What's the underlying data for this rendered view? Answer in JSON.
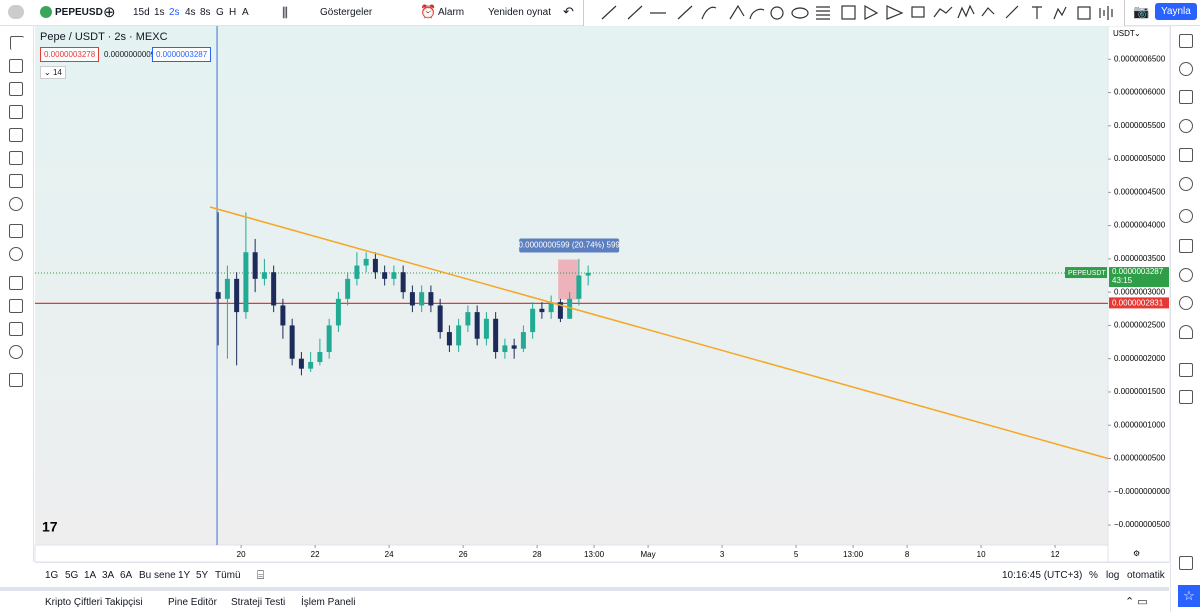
{
  "toolbar": {
    "symbol": "PEPEUSD",
    "intervals": [
      "15d",
      "1s",
      "2s",
      "4s",
      "8s",
      "G",
      "H",
      "A"
    ],
    "indicators": "Göstergeler",
    "alarm": "Alarm",
    "replay": "Yeniden oynat",
    "publish": "Yaynla"
  },
  "legend": {
    "title": "Pepe / USDT · 2s · MEXC",
    "bid": "0.0000003278",
    "spread": "0.0000000009",
    "ask": "0.0000003287",
    "indicator_count": "14"
  },
  "chart_data": {
    "type": "candlestick",
    "currency": "USDT",
    "up_color": "#22ab94",
    "down_color": "#1c2b5a",
    "xlim": [
      14.43,
      43.43
    ],
    "ylim": [
      -8e-08,
      7e-07
    ],
    "xticks": [
      20,
      22,
      24,
      26,
      28,
      {
        "value": 29.54,
        "label": "13:00"
      },
      {
        "value": 31,
        "label": "May"
      },
      {
        "value": 33,
        "label": "3"
      },
      {
        "value": 35,
        "label": "5"
      },
      {
        "value": 36.54,
        "label": "13:00"
      },
      {
        "value": 38,
        "label": "8"
      },
      {
        "value": 40,
        "label": "10"
      },
      {
        "value": 42,
        "label": "12"
      }
    ],
    "yticks": [
      {
        "value": 6.5e-07,
        "label": "0.0000006500"
      },
      {
        "value": 6e-07,
        "label": "0.0000006000"
      },
      {
        "value": 5.5e-07,
        "label": "0.0000005500"
      },
      {
        "value": 5e-07,
        "label": "0.0000005000"
      },
      {
        "value": 4.5e-07,
        "label": "0.0000004500"
      },
      {
        "value": 4e-07,
        "label": "0.0000004000"
      },
      {
        "value": 3.5e-07,
        "label": "0.0000003500"
      },
      {
        "value": 3e-07,
        "label": "0.0000003000"
      },
      {
        "value": 2.5e-07,
        "label": "0.0000002500"
      },
      {
        "value": 2e-07,
        "label": "0.0000002000"
      },
      {
        "value": 1.5e-07,
        "label": "0.0000001500"
      },
      {
        "value": 1e-07,
        "label": "0.0000001000"
      },
      {
        "value": 5e-08,
        "label": "0.0000000500"
      },
      {
        "value": 0,
        "label": "−0.0000000000"
      },
      {
        "value": -5e-08,
        "label": "−0.0000000500"
      }
    ],
    "x": [
      19.38,
      19.63,
      19.88,
      20.13,
      20.38,
      20.63,
      20.88,
      21.13,
      21.38,
      21.63,
      21.88,
      22.13,
      22.38,
      22.63,
      22.88,
      23.13,
      23.38,
      23.63,
      23.88,
      24.13,
      24.38,
      24.63,
      24.88,
      25.13,
      25.38,
      25.63,
      25.88,
      26.13,
      26.38,
      26.63,
      26.88,
      27.13,
      27.38,
      27.63,
      27.88,
      28.13,
      28.38,
      28.63,
      28.88,
      29.13,
      29.38
    ],
    "open": [
      3e-07,
      2.9e-07,
      3.2e-07,
      2.7e-07,
      3.6e-07,
      3.2e-07,
      3.3e-07,
      2.8e-07,
      2.5e-07,
      2e-07,
      1.85e-07,
      1.95e-07,
      2.1e-07,
      2.5e-07,
      2.9e-07,
      3.2e-07,
      3.4e-07,
      3.5e-07,
      3.3e-07,
      3.2e-07,
      3.3e-07,
      3e-07,
      2.8e-07,
      3e-07,
      2.8e-07,
      2.4e-07,
      2.2e-07,
      2.5e-07,
      2.7e-07,
      2.3e-07,
      2.6e-07,
      2.1e-07,
      2.2e-07,
      2.15e-07,
      2.4e-07,
      2.75e-07,
      2.7e-07,
      2.85e-07,
      2.6e-07,
      2.9e-07,
      3.25e-07
    ],
    "high": [
      4.2e-07,
      3.4e-07,
      3.3e-07,
      4.2e-07,
      3.8e-07,
      3.5e-07,
      3.4e-07,
      2.9e-07,
      2.6e-07,
      2.1e-07,
      2.1e-07,
      2.3e-07,
      2.6e-07,
      3e-07,
      3.3e-07,
      3.6e-07,
      3.6e-07,
      3.6e-07,
      3.4e-07,
      3.4e-07,
      3.4e-07,
      3.1e-07,
      3.1e-07,
      3.1e-07,
      2.9e-07,
      2.5e-07,
      2.6e-07,
      2.8e-07,
      2.8e-07,
      2.7e-07,
      2.7e-07,
      2.3e-07,
      2.3e-07,
      2.5e-07,
      2.85e-07,
      2.85e-07,
      2.95e-07,
      2.9e-07,
      3e-07,
      3.5e-07,
      3.4e-07
    ],
    "low": [
      2.2e-07,
      2e-07,
      1.9e-07,
      2.6e-07,
      3e-07,
      3.1e-07,
      2.7e-07,
      2.3e-07,
      1.9e-07,
      1.75e-07,
      1.8e-07,
      1.9e-07,
      2e-07,
      2.4e-07,
      2.8e-07,
      3.1e-07,
      3.3e-07,
      3.2e-07,
      3.1e-07,
      3.1e-07,
      2.9e-07,
      2.7e-07,
      2.7e-07,
      2.7e-07,
      2.3e-07,
      2.1e-07,
      2.1e-07,
      2.4e-07,
      2.2e-07,
      2.2e-07,
      2e-07,
      2e-07,
      2e-07,
      2.1e-07,
      2.3e-07,
      2.6e-07,
      2.6e-07,
      2.55e-07,
      2.6e-07,
      2.8e-07,
      3.1e-07
    ],
    "close": [
      2.9e-07,
      3.2e-07,
      2.7e-07,
      3.6e-07,
      3.2e-07,
      3.3e-07,
      2.8e-07,
      2.5e-07,
      2e-07,
      1.85e-07,
      1.95e-07,
      2.1e-07,
      2.5e-07,
      2.9e-07,
      3.2e-07,
      3.4e-07,
      3.5e-07,
      3.3e-07,
      3.2e-07,
      3.3e-07,
      3e-07,
      2.8e-07,
      3e-07,
      2.8e-07,
      2.4e-07,
      2.2e-07,
      2.5e-07,
      2.7e-07,
      2.3e-07,
      2.6e-07,
      2.1e-07,
      2.2e-07,
      2.15e-07,
      2.4e-07,
      2.75e-07,
      2.7e-07,
      2.85e-07,
      2.6e-07,
      2.9e-07,
      3.25e-07,
      3.29e-07
    ],
    "last_price": {
      "value": 3.287e-07,
      "label": "0.0000003287",
      "symbol": "PEPEUSDT",
      "countdown": "43:15",
      "color": "#2e9e48"
    },
    "horizontal_line": {
      "value": 2.831e-07,
      "label": "0.0000002831",
      "color": "#e53935"
    },
    "trend_line": {
      "x": [
        19.16,
        43.43
      ],
      "y": [
        4.28e-07,
        5e-08
      ],
      "color": "#f5a623"
    },
    "vertical_line": {
      "x": 19.35,
      "color": "#3f6fd8"
    },
    "measure": {
      "x": [
        28.57,
        29.11
      ],
      "y": [
        3.49e-07,
        2.89e-07
      ],
      "label": "0.0000000599 (20.74%) 599"
    }
  },
  "bottom_bar": {
    "ranges": [
      "1G",
      "5G",
      "1A",
      "3A",
      "6A",
      "Bu sene",
      "1Y",
      "5Y",
      "Tümü"
    ],
    "clock": "10:16:45 (UTC+3)",
    "percent": "%",
    "log": "log",
    "auto": "otomatik"
  },
  "panels": [
    "Kripto Çiftleri Takipçisi",
    "Pine Editör",
    "Strateji Testi",
    "İşlem Paneli"
  ]
}
